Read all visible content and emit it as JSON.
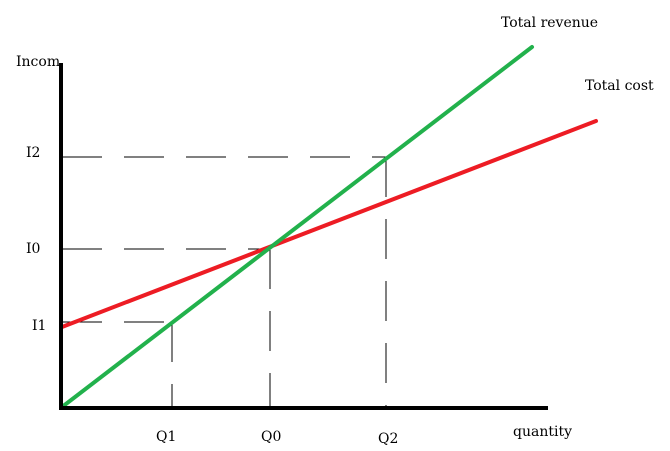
{
  "axes": {
    "y_label": "Incom",
    "x_label": "quantity"
  },
  "y_ticks": {
    "i2": "I2",
    "i0": "I0",
    "i1": "I1"
  },
  "x_ticks": {
    "q1": "Q1",
    "q0": "Q0",
    "q2": "Q2"
  },
  "lines": {
    "revenue": {
      "label": "Total revenue",
      "color": "#22b14c"
    },
    "cost": {
      "label": "Total cost",
      "color": "#ed1c24"
    }
  },
  "colors": {
    "axis": "#000000",
    "guide": "#000000"
  }
}
